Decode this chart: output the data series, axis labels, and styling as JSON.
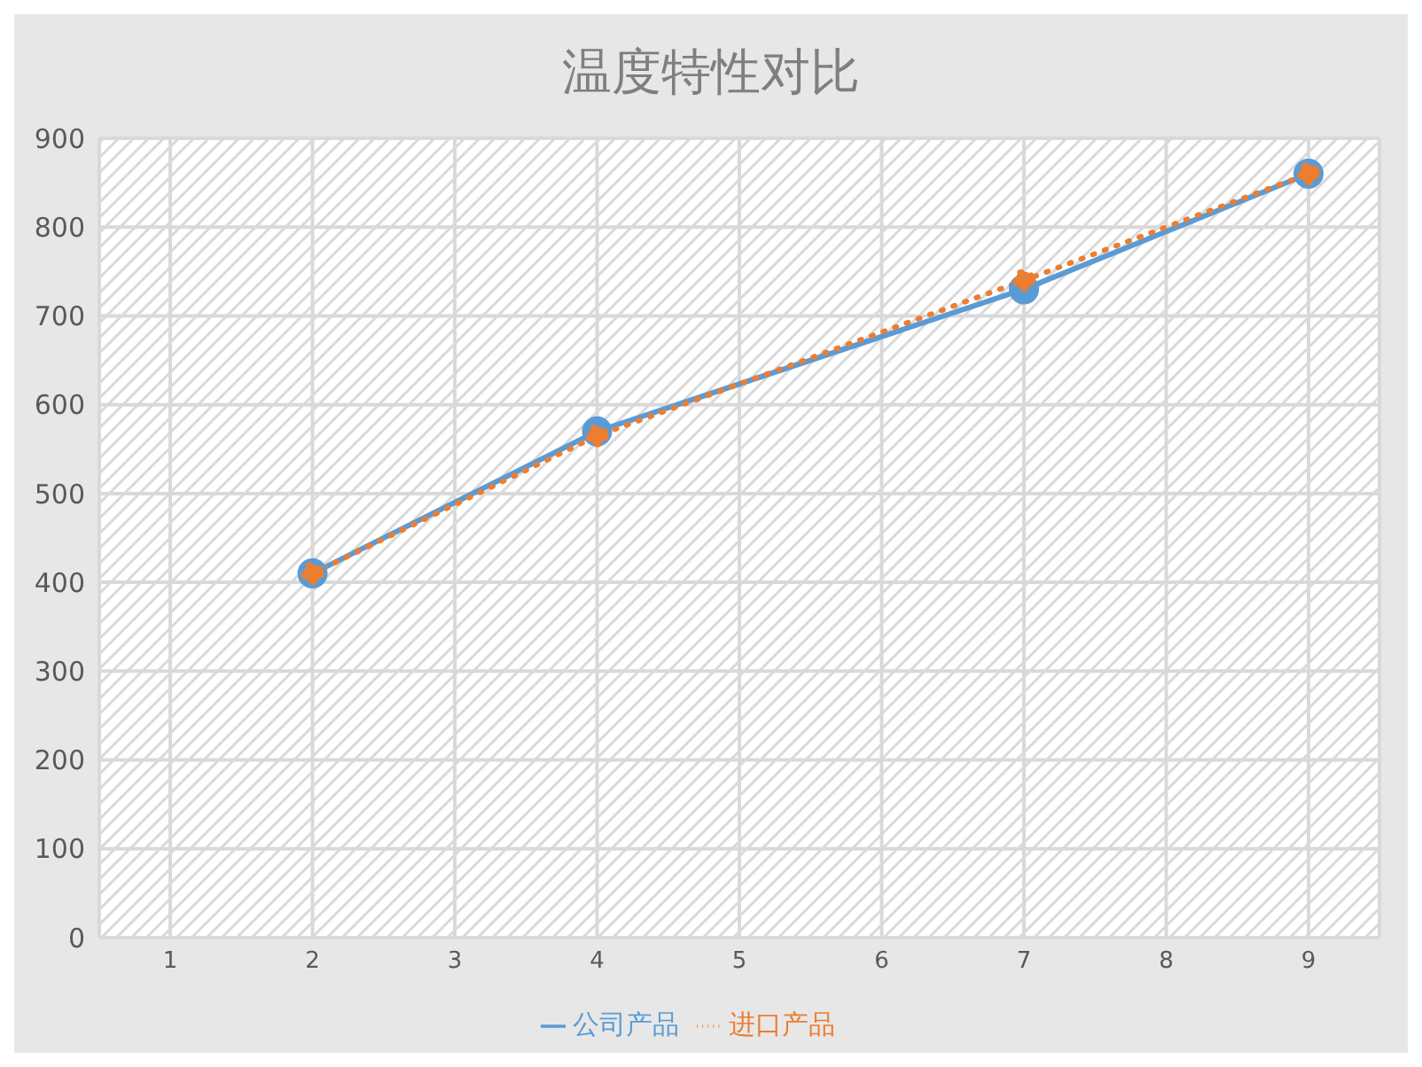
{
  "chart_data": {
    "type": "line",
    "title": "温度特性对比",
    "categories": [
      "1",
      "2",
      "3",
      "4",
      "5",
      "6",
      "7",
      "8",
      "9"
    ],
    "series": [
      {
        "name": "公司产品",
        "color": "#5b9bd5",
        "values": [
          null,
          410,
          null,
          570,
          null,
          null,
          730,
          null,
          860
        ],
        "line_style": "solid"
      },
      {
        "name": "进口产品",
        "color": "#ed7d31",
        "values": [
          null,
          410,
          null,
          565,
          null,
          null,
          740,
          null,
          860
        ],
        "line_style": "dotted"
      }
    ],
    "ylim": [
      0,
      900
    ],
    "yticks": [
      0,
      100,
      200,
      300,
      400,
      500,
      600,
      700,
      800,
      900
    ],
    "grid": true,
    "legend": "bottom",
    "marker": "circle"
  }
}
